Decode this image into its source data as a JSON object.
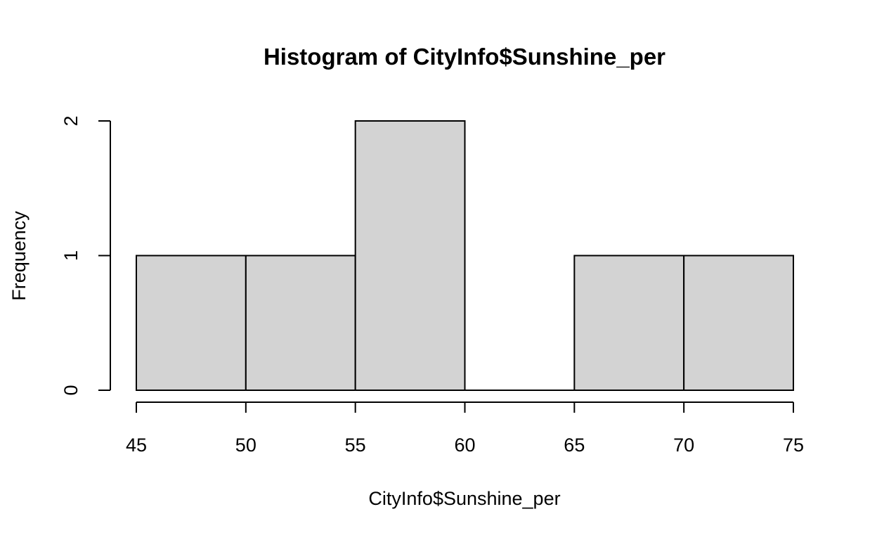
{
  "chart_data": {
    "type": "bar",
    "subtype": "histogram",
    "title": "Histogram of CityInfo$Sunshine_per",
    "xlabel": "CityInfo$Sunshine_per",
    "ylabel": "Frequency",
    "bins": [
      {
        "start": 45,
        "end": 50,
        "count": 1
      },
      {
        "start": 50,
        "end": 55,
        "count": 1
      },
      {
        "start": 55,
        "end": 60,
        "count": 2
      },
      {
        "start": 60,
        "end": 65,
        "count": 0
      },
      {
        "start": 65,
        "end": 70,
        "count": 1
      },
      {
        "start": 70,
        "end": 75,
        "count": 1
      }
    ],
    "x_ticks": [
      "45",
      "50",
      "55",
      "60",
      "65",
      "70",
      "75"
    ],
    "y_ticks": [
      "0",
      "1",
      "2"
    ],
    "xlim": [
      45,
      75
    ],
    "ylim": [
      0,
      2
    ],
    "grid": false,
    "legend": "none",
    "bar_fill": "#d3d3d3",
    "bar_stroke": "#000000"
  }
}
